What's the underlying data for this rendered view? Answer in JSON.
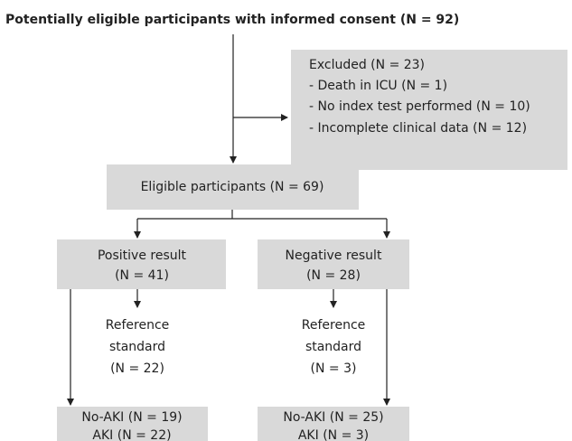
{
  "header": {
    "title": "Potentially eligible participants with informed consent (N = 92)"
  },
  "excluded": {
    "lines": [
      "Excluded (N = 23)",
      "- Death in ICU (N = 1)",
      "- No index test performed (N = 10)",
      "- Incomplete clinical data (N = 12)"
    ]
  },
  "eligible": {
    "label": "Eligible participants (N = 69)"
  },
  "positive": {
    "lines": [
      "Positive result",
      "(N = 41)"
    ],
    "reference": [
      "Reference",
      "standard",
      "(N = 22)"
    ],
    "outcome": [
      "No-AKI (N = 19)",
      "AKI (N = 22)"
    ]
  },
  "negative": {
    "lines": [
      "Negative result",
      "(N = 28)"
    ],
    "reference": [
      "Reference",
      "standard",
      "(N = 3)"
    ],
    "outcome": [
      "No-AKI (N = 25)",
      "AKI (N = 3)"
    ]
  }
}
